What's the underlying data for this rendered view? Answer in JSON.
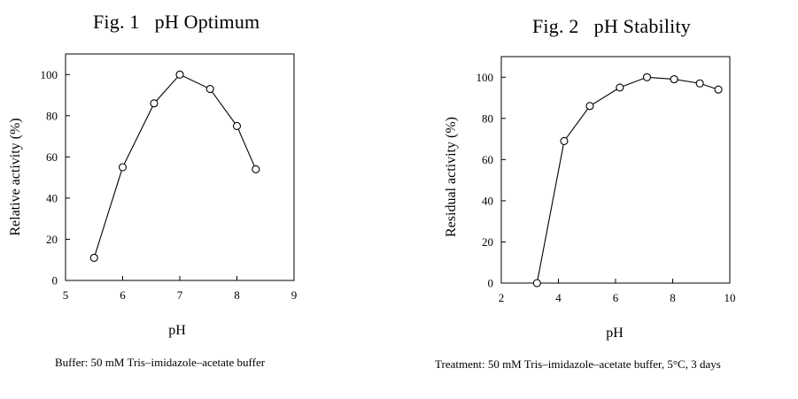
{
  "chart_data": [
    {
      "type": "line",
      "title": "Fig. 1   pH Optimum",
      "xlabel": "pH",
      "ylabel": "Relative activity (%)",
      "xlim": [
        5,
        9
      ],
      "ylim": [
        0,
        110
      ],
      "xticks": [
        5,
        6,
        7,
        8,
        9
      ],
      "yticks": [
        0,
        20,
        40,
        60,
        80,
        100
      ],
      "series": [
        {
          "x": [
            5.5,
            6.0,
            6.55,
            7.0,
            7.53,
            8.0,
            8.33
          ],
          "y": [
            11,
            55,
            86,
            100,
            93,
            75,
            54
          ]
        }
      ],
      "marker": "open-circle",
      "grid": false,
      "caption": "Buffer: 50 mM Tris–imidazole–acetate buffer"
    },
    {
      "type": "line",
      "title": "Fig. 2   pH Stability",
      "xlabel": "pH",
      "ylabel": "Residual activity (%)",
      "xlim": [
        2,
        10
      ],
      "ylim": [
        0,
        110
      ],
      "xticks": [
        2,
        4,
        6,
        8,
        10
      ],
      "yticks": [
        0,
        20,
        40,
        60,
        80,
        100
      ],
      "series": [
        {
          "x": [
            3.25,
            4.2,
            5.1,
            6.15,
            7.1,
            8.05,
            8.95,
            9.6
          ],
          "y": [
            0,
            69,
            86,
            95,
            100,
            99,
            97,
            94
          ]
        }
      ],
      "marker": "open-circle",
      "grid": false,
      "caption": "Treatment: 50 mM Tris–imidazole–acetate buffer, 5°C, 3 days"
    }
  ]
}
